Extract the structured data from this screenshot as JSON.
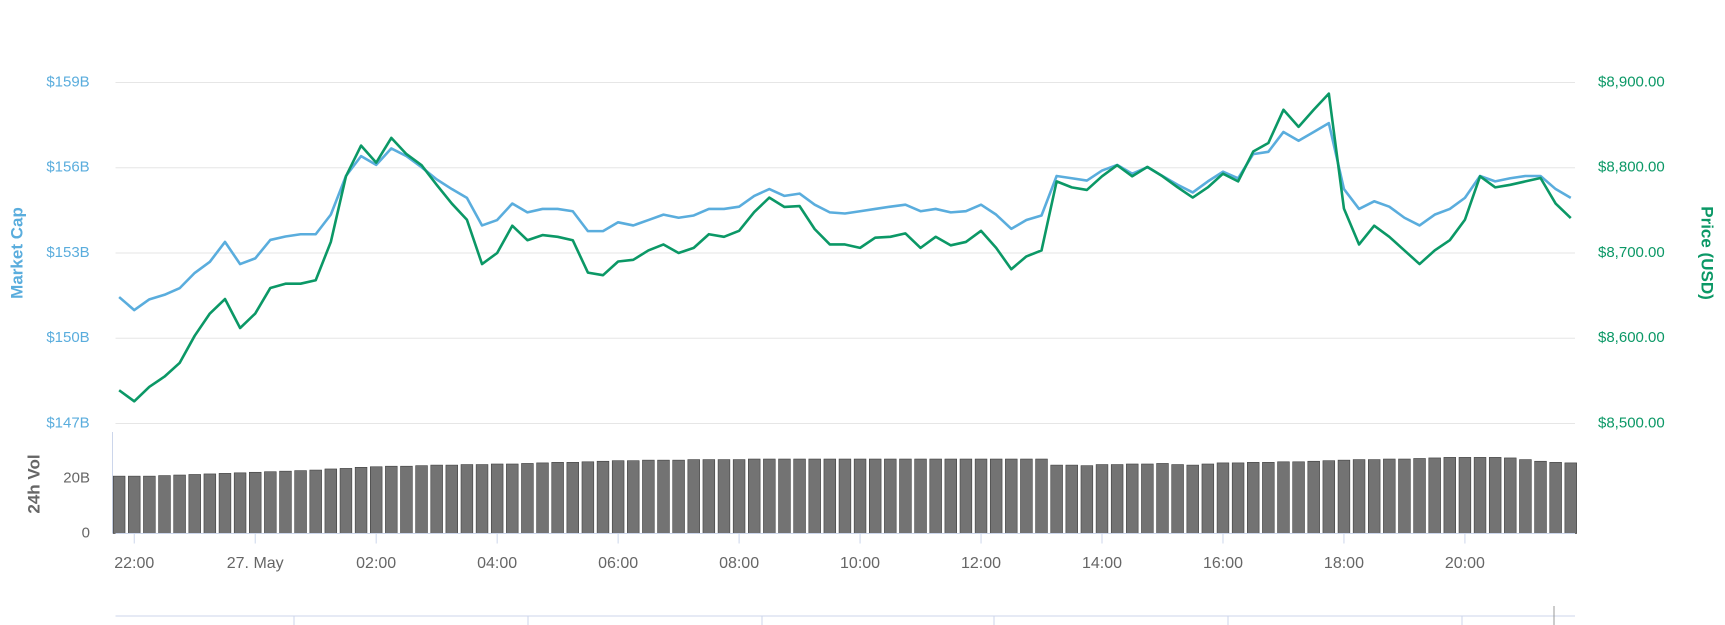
{
  "chart_data": [
    {
      "type": "line",
      "y_label": "Market Cap",
      "y2_label": "Price (USD)",
      "x": [
        21.75,
        22,
        22.25,
        22.5,
        22.75,
        23,
        23.25,
        23.5,
        23.75,
        24,
        24.25,
        24.5,
        24.75,
        25,
        25.25,
        25.5,
        25.75,
        26,
        26.25,
        26.5,
        26.75,
        27,
        27.25,
        27.5,
        27.75,
        28,
        28.25,
        28.5,
        28.75,
        29,
        29.25,
        29.5,
        29.75,
        30,
        30.25,
        30.5,
        30.75,
        31,
        31.25,
        31.5,
        31.75,
        32,
        32.25,
        32.5,
        32.75,
        33,
        33.25,
        33.5,
        33.75,
        34,
        34.25,
        34.5,
        34.75,
        35,
        35.25,
        35.5,
        35.75,
        36,
        36.25,
        36.5,
        36.75,
        37,
        37.25,
        37.5,
        37.75,
        38,
        38.25,
        38.5,
        38.75,
        39,
        39.25,
        39.5,
        39.75,
        40,
        40.25,
        40.5,
        40.75,
        41,
        41.25,
        41.5,
        41.75,
        42,
        42.25,
        42.5,
        42.75,
        43,
        43.25,
        43.5,
        43.75,
        44,
        44.25,
        44.5,
        44.75,
        45,
        45.25,
        45.5,
        45.75
      ],
      "xlim": [
        21.69,
        45.82
      ],
      "ylim": [
        147,
        159
      ],
      "yticks": [
        {
          "value": 147,
          "label": "$147B"
        },
        {
          "value": 150,
          "label": "$150B"
        },
        {
          "value": 153,
          "label": "$153B"
        },
        {
          "value": 156,
          "label": "$156B"
        },
        {
          "value": 159,
          "label": "$159B"
        }
      ],
      "y2lim": [
        8500,
        8900
      ],
      "y2ticks": [
        {
          "value": 8500,
          "label": "$8,500.00"
        },
        {
          "value": 8600,
          "label": "$8,600.00"
        },
        {
          "value": 8700,
          "label": "$8,700.00"
        },
        {
          "value": 8800,
          "label": "$8,800.00"
        },
        {
          "value": 8900,
          "label": "$8,900.00"
        }
      ],
      "grid": true,
      "series": [
        {
          "color": "#5aaddd",
          "axis": "y",
          "values": [
            151.45,
            150.99,
            151.37,
            151.53,
            151.76,
            152.3,
            152.69,
            153.39,
            152.61,
            152.81,
            153.46,
            153.58,
            153.66,
            153.66,
            154.35,
            155.71,
            156.41,
            156.1,
            156.68,
            156.41,
            156.02,
            155.59,
            155.25,
            154.94,
            153.97,
            154.16,
            154.74,
            154.43,
            154.55,
            154.55,
            154.47,
            153.77,
            153.77,
            154.08,
            153.97,
            154.16,
            154.35,
            154.24,
            154.32,
            154.55,
            154.55,
            154.63,
            155.01,
            155.25,
            155.01,
            155.09,
            154.7,
            154.43,
            154.39,
            154.47,
            154.55,
            154.63,
            154.7,
            154.47,
            154.55,
            154.43,
            154.47,
            154.7,
            154.35,
            153.85,
            154.16,
            154.32,
            155.71,
            155.63,
            155.55,
            155.9,
            156.1,
            155.79,
            156.02,
            155.71,
            155.4,
            155.13,
            155.52,
            155.86,
            155.63,
            156.48,
            156.56,
            157.26,
            156.95,
            157.26,
            157.57,
            155.25,
            154.55,
            154.82,
            154.63,
            154.24,
            153.97,
            154.35,
            154.55,
            154.94,
            155.71,
            155.52,
            155.63,
            155.71,
            155.71,
            155.25,
            154.94
          ]
        },
        {
          "color": "#0b9866",
          "axis": "y2",
          "values": [
            8539,
            8526,
            8543,
            8555,
            8571,
            8603,
            8629,
            8646,
            8612,
            8629,
            8659,
            8664,
            8664,
            8668,
            8713,
            8790,
            8826,
            8806,
            8835,
            8816,
            8803,
            8780,
            8758,
            8739,
            8687,
            8700,
            8732,
            8715,
            8721,
            8719,
            8715,
            8677,
            8674,
            8690,
            8692,
            8703,
            8710,
            8700,
            8706,
            8722,
            8719,
            8726,
            8748,
            8765,
            8754,
            8755,
            8728,
            8710,
            8710,
            8706,
            8718,
            8719,
            8723,
            8706,
            8719,
            8709,
            8713,
            8726,
            8706,
            8681,
            8696,
            8703,
            8784,
            8777,
            8774,
            8790,
            8803,
            8790,
            8801,
            8790,
            8777,
            8765,
            8777,
            8793,
            8784,
            8819,
            8829,
            8868,
            8848,
            8868,
            8887,
            8752,
            8710,
            8732,
            8719,
            8703,
            8687,
            8703,
            8715,
            8739,
            8790,
            8777,
            8780,
            8784,
            8788,
            8758,
            8741
          ]
        }
      ]
    },
    {
      "type": "bar",
      "y_label": "24h Vol",
      "x": [
        21.75,
        22,
        22.25,
        22.5,
        22.75,
        23,
        23.25,
        23.5,
        23.75,
        24,
        24.25,
        24.5,
        24.75,
        25,
        25.25,
        25.5,
        25.75,
        26,
        26.25,
        26.5,
        26.75,
        27,
        27.25,
        27.5,
        27.75,
        28,
        28.25,
        28.5,
        28.75,
        29,
        29.25,
        29.5,
        29.75,
        30,
        30.25,
        30.5,
        30.75,
        31,
        31.25,
        31.5,
        31.75,
        32,
        32.25,
        32.5,
        32.75,
        33,
        33.25,
        33.5,
        33.75,
        34,
        34.25,
        34.5,
        34.75,
        35,
        35.25,
        35.5,
        35.75,
        36,
        36.25,
        36.5,
        36.75,
        37,
        37.25,
        37.5,
        37.75,
        38,
        38.25,
        38.5,
        38.75,
        39,
        39.25,
        39.5,
        39.75,
        40,
        40.25,
        40.5,
        40.75,
        41,
        41.25,
        41.5,
        41.75,
        42,
        42.25,
        42.5,
        42.75,
        43,
        43.25,
        43.5,
        43.75,
        44,
        44.25,
        44.5,
        44.75,
        45,
        45.25,
        45.5,
        45.75
      ],
      "xlim": [
        21.69,
        45.82
      ],
      "xticks": [
        {
          "value": 22,
          "label": "22:00"
        },
        {
          "value": 24,
          "label": "27. May"
        },
        {
          "value": 26,
          "label": "02:00"
        },
        {
          "value": 28,
          "label": "04:00"
        },
        {
          "value": 30,
          "label": "06:00"
        },
        {
          "value": 32,
          "label": "08:00"
        },
        {
          "value": 34,
          "label": "10:00"
        },
        {
          "value": 36,
          "label": "12:00"
        },
        {
          "value": 38,
          "label": "14:00"
        },
        {
          "value": 40,
          "label": "16:00"
        },
        {
          "value": 42,
          "label": "18:00"
        },
        {
          "value": 44,
          "label": "20:00"
        }
      ],
      "ylim": [
        0,
        36.8
      ],
      "yticks": [
        0,
        {
          "value": 20,
          "label": "20B"
        }
      ],
      "color": "#737373",
      "values": [
        20.8,
        20.8,
        20.8,
        21.0,
        21.2,
        21.4,
        21.6,
        21.8,
        22.0,
        22.2,
        22.4,
        22.6,
        22.8,
        23.0,
        23.4,
        23.6,
        24.0,
        24.2,
        24.4,
        24.4,
        24.6,
        24.8,
        24.8,
        25.0,
        25.0,
        25.2,
        25.2,
        25.4,
        25.6,
        25.8,
        25.8,
        26.0,
        26.2,
        26.4,
        26.4,
        26.6,
        26.6,
        26.6,
        26.8,
        26.8,
        26.8,
        26.8,
        27.0,
        27.0,
        27.0,
        27.0,
        27.0,
        27.0,
        27.0,
        27.0,
        27.0,
        27.0,
        27.0,
        27.0,
        27.0,
        27.0,
        27.0,
        27.0,
        27.0,
        27.0,
        27.0,
        27.0,
        24.8,
        24.8,
        24.6,
        25.0,
        25.0,
        25.2,
        25.2,
        25.4,
        25.0,
        24.8,
        25.2,
        25.6,
        25.6,
        25.8,
        25.8,
        26.0,
        26.0,
        26.2,
        26.4,
        26.6,
        26.8,
        26.8,
        27.0,
        27.0,
        27.2,
        27.4,
        27.6,
        27.6,
        27.6,
        27.6,
        27.4,
        26.8,
        26.2,
        25.8,
        25.6
      ]
    }
  ]
}
